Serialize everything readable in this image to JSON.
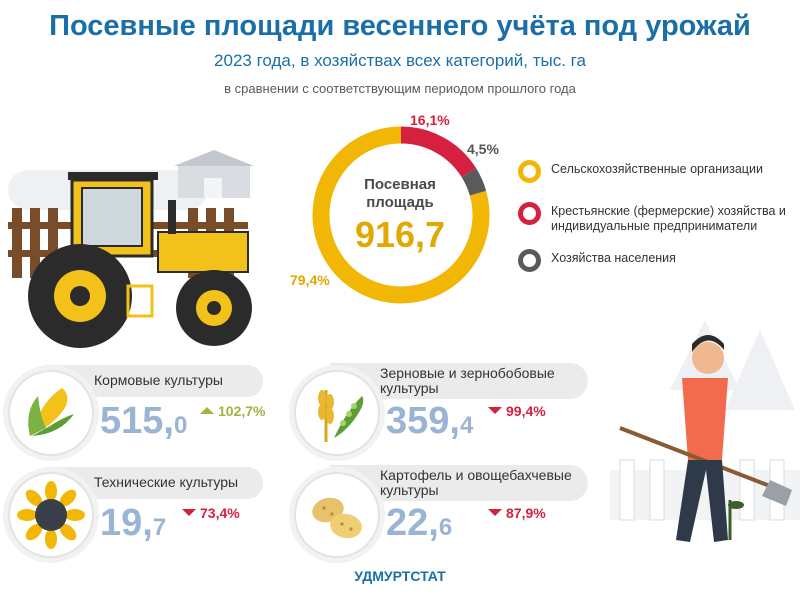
{
  "header": {
    "title": "Посевные площади весеннего учёта под урожай",
    "subtitle": "2023 года, в хозяйствах всех категорий, тыс. га",
    "comparison_note": "в сравнении с соответствующим периодом прошлого года"
  },
  "chart_data": {
    "type": "pie",
    "center_label": "Посевная площадь",
    "center_value": "916,7",
    "slices": [
      {
        "name": "Сельскохозяйственные организации",
        "value": 79.4,
        "label": "79,4%",
        "color": "#f2b705"
      },
      {
        "name": "Крестьянские (фермерские) хозяйства и индивидуальные предприниматели",
        "value": 16.1,
        "label": "16,1%",
        "color": "#d6203f"
      },
      {
        "name": "Хозяйства населения",
        "value": 4.5,
        "label": "4,5%",
        "color": "#5a5a5a"
      }
    ]
  },
  "categories": [
    {
      "name": "Кормовые культуры",
      "value_int": "515,",
      "value_dec": "0",
      "change": "102,7%",
      "direction": "up",
      "icon": "corn-icon"
    },
    {
      "name": "Зерновые и зернобобовые культуры",
      "value_int": "359,",
      "value_dec": "4",
      "change": "99,4%",
      "direction": "down",
      "icon": "wheat-peas-icon"
    },
    {
      "name": "Технические культуры",
      "value_int": "19,",
      "value_dec": "7",
      "change": "73,4%",
      "direction": "down",
      "icon": "sunflower-icon"
    },
    {
      "name": "Картофель и овощебахчевые культуры",
      "value_int": "22,",
      "value_dec": "6",
      "change": "87,9%",
      "direction": "down",
      "icon": "potato-icon"
    }
  ],
  "footer": {
    "org": "УДМУРТСТАТ"
  }
}
